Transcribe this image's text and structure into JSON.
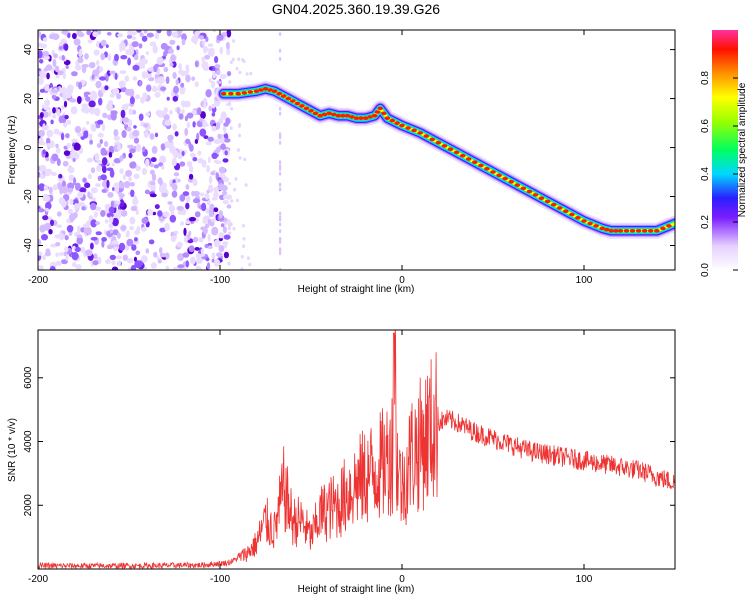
{
  "title": "GN04.2025.360.19.39.G26",
  "chart_data": [
    {
      "type": "heatmap",
      "xlabel": "Height of straight line (km)",
      "ylabel": "Frequency (Hz)",
      "xlim": [
        -200,
        150
      ],
      "ylim": [
        -50,
        48
      ],
      "xticks": [
        -200,
        -100,
        0,
        100
      ],
      "yticks": [
        -40,
        -20,
        0,
        20,
        40
      ],
      "ridge": {
        "x": [
          -98,
          -90,
          -80,
          -75,
          -70,
          -65,
          -60,
          -55,
          -50,
          -45,
          -40,
          -35,
          -30,
          -25,
          -20,
          -15,
          -12,
          -8,
          0,
          10,
          20,
          30,
          40,
          50,
          60,
          70,
          80,
          90,
          100,
          110,
          115,
          120,
          130,
          140,
          150
        ],
        "y": [
          22,
          22,
          23,
          24,
          23,
          21,
          19,
          17,
          15,
          13,
          14,
          13,
          13,
          12,
          12,
          13,
          16,
          12,
          9,
          6,
          2,
          -2,
          -6,
          -10,
          -14,
          -18,
          -22,
          -26,
          -30,
          -33,
          -34,
          -34,
          -34,
          -34,
          -31
        ]
      },
      "colorbar": {
        "label": "Normalized spectral amplitude",
        "range": [
          0,
          1
        ],
        "ticks": [
          0.0,
          0.2,
          0.4,
          0.6,
          0.8
        ],
        "tick_labels": [
          "0.0",
          "0.2",
          "0.4",
          "0.6",
          "0.8"
        ]
      }
    },
    {
      "type": "line",
      "xlabel": "Height of straight line (km)",
      "ylabel": "SNR (10 * v/v)",
      "xlim": [
        -200,
        150
      ],
      "ylim": [
        0,
        7500
      ],
      "xticks": [
        -200,
        -100,
        0,
        100
      ],
      "yticks": [
        2000,
        4000,
        6000
      ],
      "color": "#ee3333",
      "series": [
        {
          "name": "SNR",
          "x": [
            -200,
            -150,
            -110,
            -95,
            -85,
            -80,
            -75,
            -70,
            -65,
            -60,
            -55,
            -50,
            -45,
            -40,
            -35,
            -30,
            -25,
            -20,
            -15,
            -10,
            -5,
            -4,
            -3,
            0,
            5,
            10,
            15,
            20,
            25,
            30,
            40,
            50,
            60,
            70,
            80,
            90,
            100,
            110,
            120,
            130,
            140,
            150
          ],
          "values": [
            100,
            100,
            120,
            200,
            500,
            800,
            1500,
            1200,
            2500,
            1500,
            1500,
            1000,
            1700,
            1900,
            2000,
            2400,
            2700,
            2900,
            3100,
            3300,
            3800,
            7400,
            3500,
            2500,
            3600,
            3900,
            4300,
            4600,
            4700,
            4600,
            4300,
            4100,
            3900,
            3700,
            3600,
            3500,
            3400,
            3300,
            3200,
            3100,
            2900,
            2700
          ]
        }
      ]
    }
  ]
}
